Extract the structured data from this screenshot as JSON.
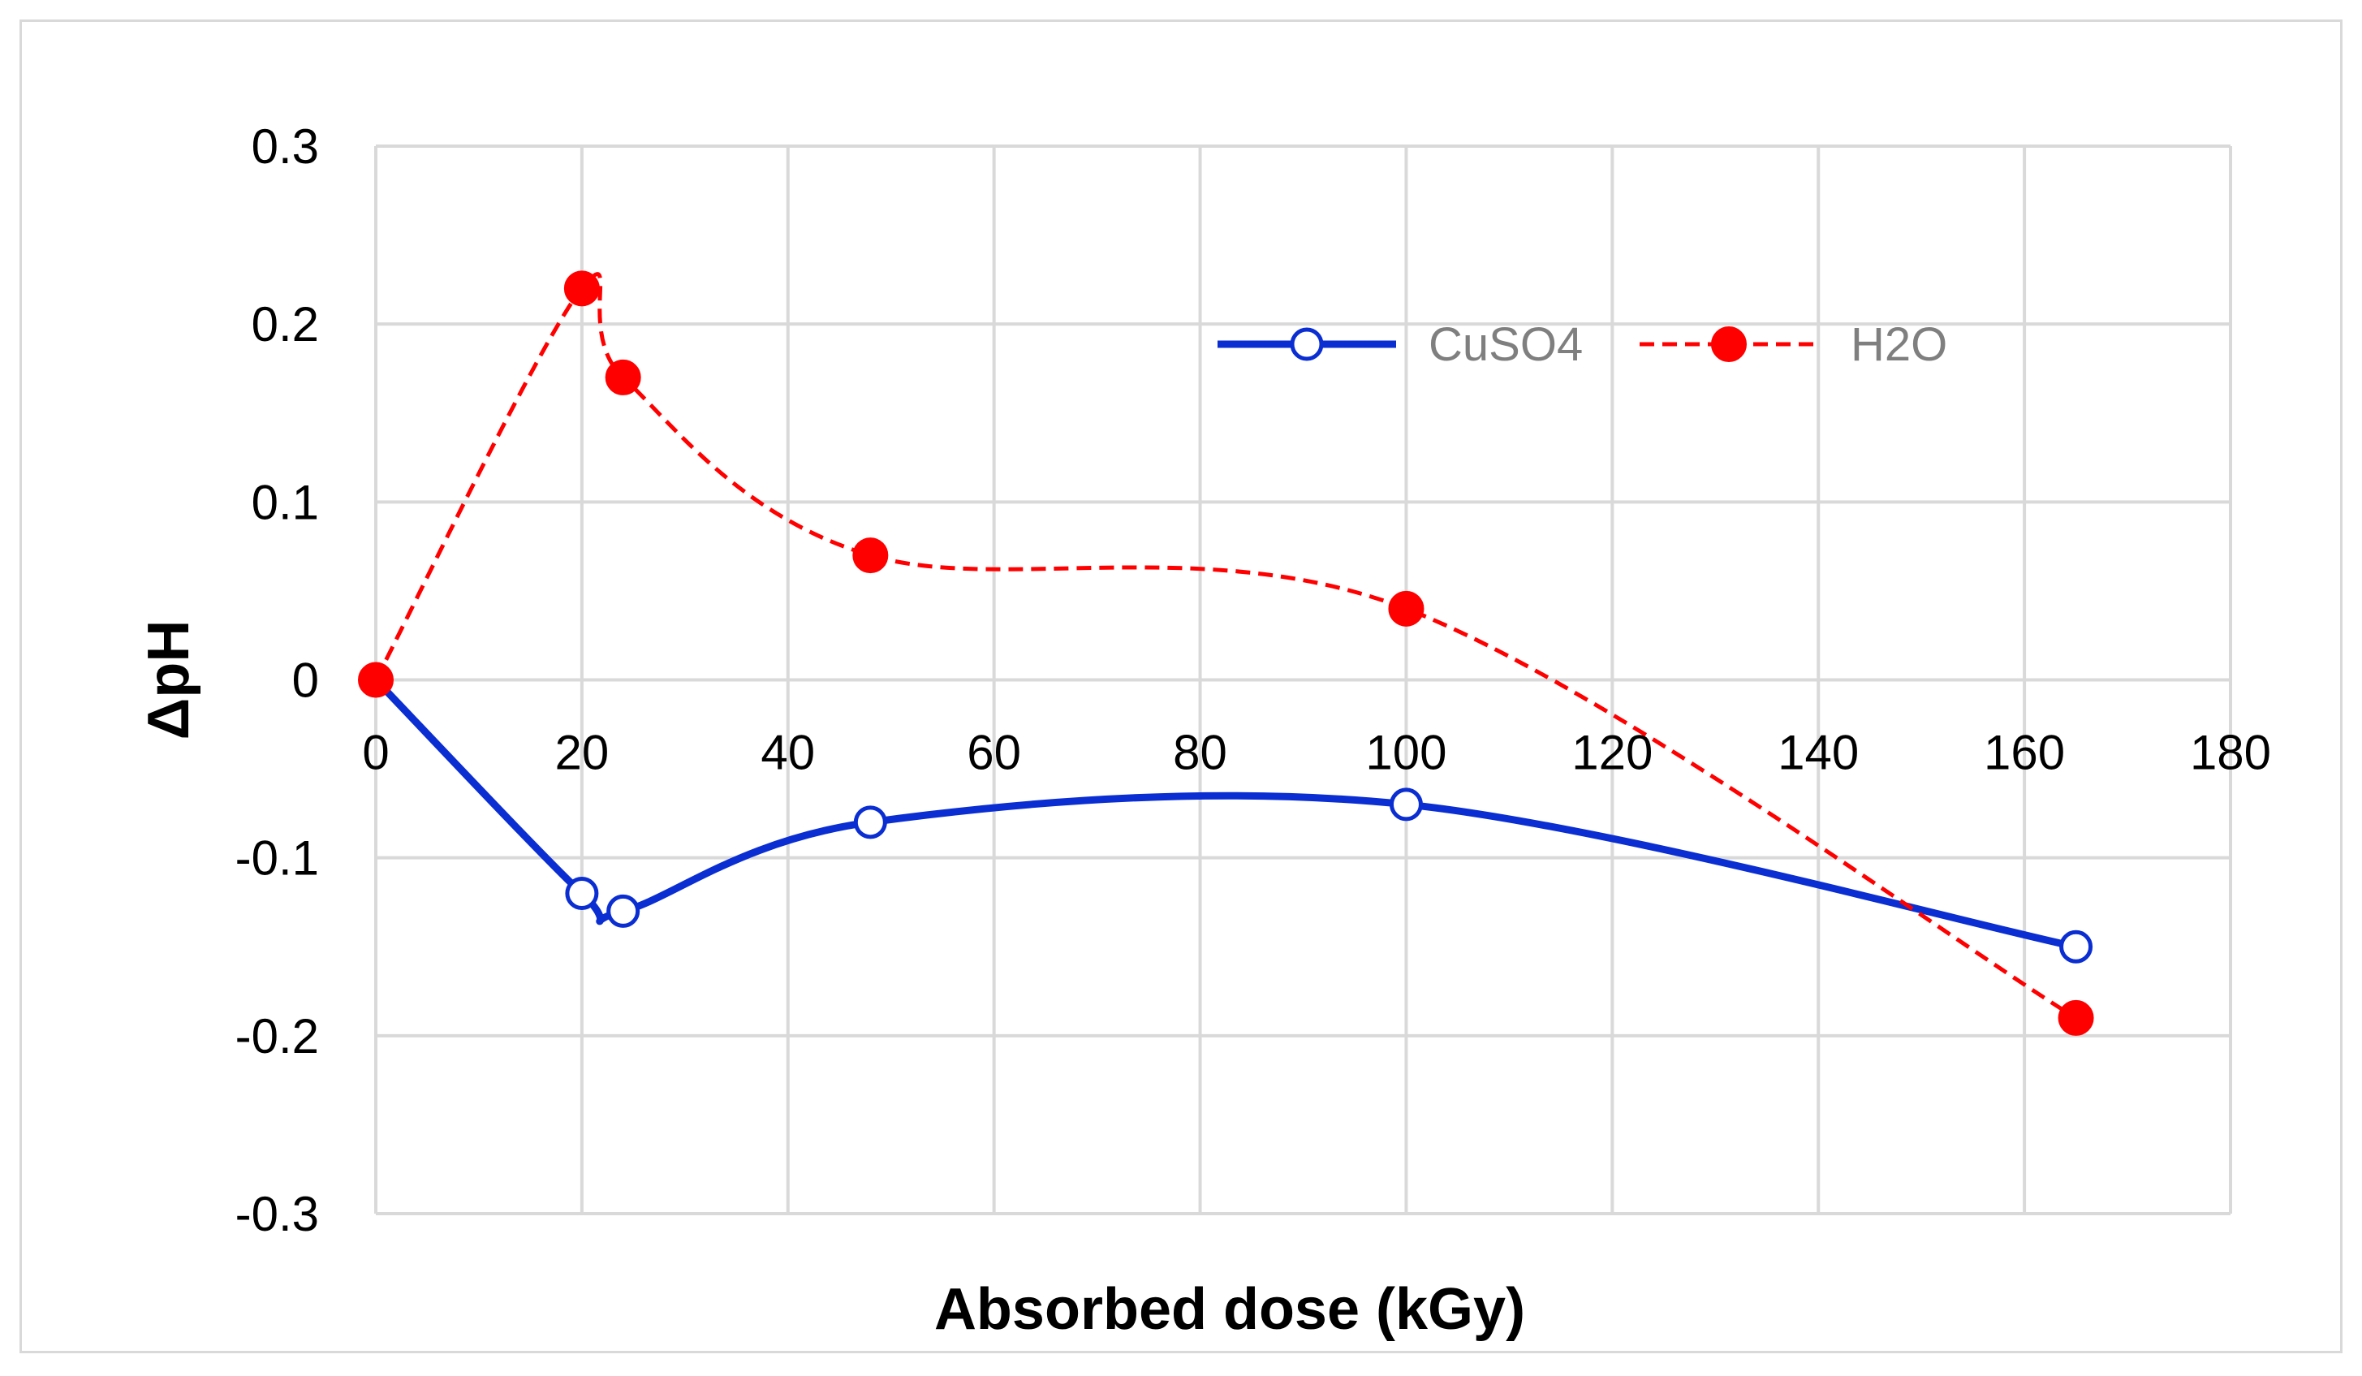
{
  "chart_data": {
    "type": "line",
    "title": "",
    "xlabel": "Absorbed dose (kGy)",
    "ylabel": "ΔpH",
    "xlim": [
      0,
      180
    ],
    "ylim": [
      -0.3,
      0.3
    ],
    "x_ticks": [
      0,
      20,
      40,
      60,
      80,
      100,
      120,
      140,
      160,
      180
    ],
    "x_tick_labels": [
      "0",
      "20",
      "40",
      "60",
      "80",
      "100",
      "120",
      "140",
      "160",
      "180"
    ],
    "y_ticks": [
      0.3,
      0.2,
      0.1,
      0,
      -0.1,
      -0.2,
      -0.3
    ],
    "y_tick_labels": [
      "0.3",
      "0.2",
      "0.1",
      "0",
      "-0.1",
      "-0.2",
      "-0.3"
    ],
    "grid": true,
    "legend_position": "top-right",
    "series": [
      {
        "name": "CuSO4",
        "color": "#0a2ed1",
        "line_style": "solid",
        "marker": "open-circle",
        "smooth": true,
        "x": [
          0,
          20,
          24,
          48,
          100,
          165
        ],
        "values": [
          0,
          -0.12,
          -0.13,
          -0.08,
          -0.07,
          -0.15
        ]
      },
      {
        "name": "H2O",
        "color": "#ff0000",
        "line_style": "dashed",
        "marker": "filled-circle",
        "smooth": true,
        "x": [
          0,
          20,
          24,
          48,
          100,
          165
        ],
        "values": [
          0,
          0.22,
          0.17,
          0.07,
          0.04,
          -0.19
        ]
      }
    ]
  }
}
